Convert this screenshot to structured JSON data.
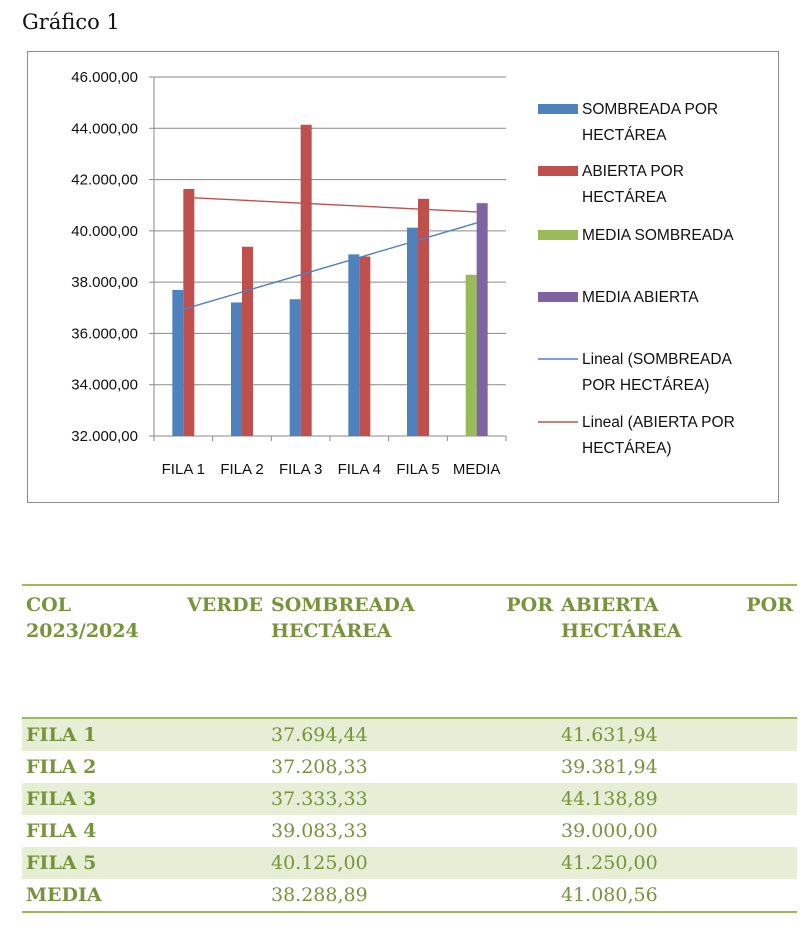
{
  "caption": "Gráfico 1",
  "chart_data": {
    "type": "bar",
    "categories": [
      "FILA 1",
      "FILA 2",
      "FILA 3",
      "FILA 4",
      "FILA 5",
      "MEDIA"
    ],
    "series": [
      {
        "name": "SOMBREADA POR HECTÁREA",
        "color": "#4f81bd",
        "values": [
          37694.44,
          37208.33,
          37333.33,
          39083.33,
          40125.0,
          null
        ]
      },
      {
        "name": "ABIERTA POR HECTÁREA",
        "color": "#c0504d",
        "values": [
          41631.94,
          39381.94,
          44138.89,
          39000.0,
          41250.0,
          null
        ]
      },
      {
        "name": "MEDIA SOMBREADA",
        "color": "#9bbb59",
        "values": [
          null,
          null,
          null,
          null,
          null,
          38288.89
        ]
      },
      {
        "name": "MEDIA ABIERTA",
        "color": "#8064a2",
        "values": [
          null,
          null,
          null,
          null,
          null,
          41080.56
        ]
      }
    ],
    "trendlines": [
      {
        "name": "Lineal (SOMBREADA POR HECTÁREA)",
        "color": "#4f81bd",
        "of_series": 0
      },
      {
        "name": "Lineal (ABIERTA POR HECTÁREA)",
        "color": "#c0504d",
        "of_series": 1
      }
    ],
    "y_ticks": [
      "46.000,00",
      "44.000,00",
      "42.000,00",
      "40.000,00",
      "38.000,00",
      "36.000,00",
      "34.000,00",
      "32.000,00"
    ],
    "ylim": [
      32000,
      46000
    ],
    "grid": true,
    "legend": "right"
  },
  "legend_lines": [
    [
      "SOMBREADA POR",
      "HECTÁREA"
    ],
    [
      "ABIERTA POR",
      "HECTÁREA"
    ],
    [
      "MEDIA SOMBREADA"
    ],
    [
      "MEDIA ABIERTA"
    ],
    [
      "Lineal (SOMBREADA",
      "POR HECTÁREA)"
    ],
    [
      "Lineal (ABIERTA POR",
      "HECTÁREA)"
    ]
  ],
  "table": {
    "header": {
      "col1": [
        "COL",
        "VERDE",
        "2023/2024"
      ],
      "col2": [
        "SOMBREADA",
        "POR",
        "HECTÁREA"
      ],
      "col3": [
        "ABIERTA",
        "POR",
        "HECTÁREA"
      ]
    },
    "rows": [
      {
        "label": "FILA 1",
        "sombreada": "37.694,44",
        "abierta": "41.631,94"
      },
      {
        "label": "FILA 2",
        "sombreada": "37.208,33",
        "abierta": "39.381,94"
      },
      {
        "label": "FILA 3",
        "sombreada": "37.333,33",
        "abierta": "44.138,89"
      },
      {
        "label": "FILA 4",
        "sombreada": "39.083,33",
        "abierta": "39.000,00"
      },
      {
        "label": "FILA 5",
        "sombreada": "40.125,00",
        "abierta": "41.250,00"
      },
      {
        "label": "MEDIA",
        "sombreada": "38.288,89",
        "abierta": "41.080,56"
      }
    ]
  }
}
